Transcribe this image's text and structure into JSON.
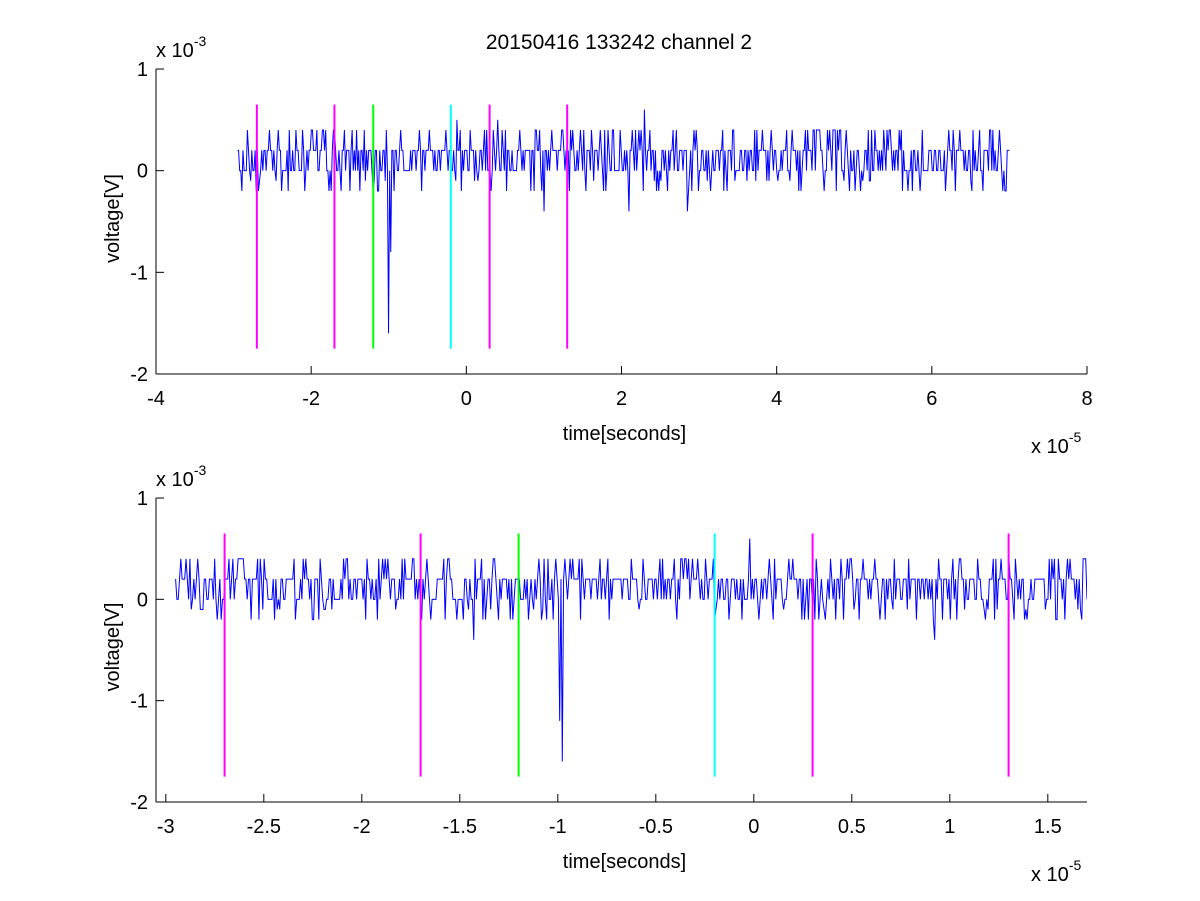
{
  "figure_title": "20150416 133242 channel 2",
  "chart_data": [
    {
      "type": "line",
      "title": "20150416 133242 channel 2",
      "xlabel": "time[seconds]",
      "ylabel": "voltage[V]",
      "x_exponent_label": "x 10",
      "x_exponent": "-5",
      "y_exponent_label": "x 10",
      "y_exponent": "-3",
      "xlim": [
        -4,
        8
      ],
      "ylim": [
        -2,
        1
      ],
      "xticks": [
        -4,
        -2,
        0,
        2,
        4,
        6,
        8
      ],
      "xtick_labels": [
        "-4",
        "-2",
        "0",
        "2",
        "4",
        "6",
        "8"
      ],
      "yticks": [
        -2,
        -1,
        0,
        1
      ],
      "ytick_labels": [
        "-2",
        "-1",
        "0",
        "1"
      ],
      "grid": false,
      "signal": {
        "color": "#0000ff",
        "x_range": [
          -2.95,
          7.0
        ],
        "baseline": 0.05,
        "levels": [
          -0.2,
          -0.1,
          0.0,
          0.2,
          0.4
        ],
        "spikes": [
          {
            "x": -1.0,
            "y": -1.6
          },
          {
            "x": -0.98,
            "y": -0.8
          },
          {
            "x": 2.3,
            "y": 0.6
          },
          {
            "x": 0.4,
            "y": 0.5
          },
          {
            "x": 2.1,
            "y": -0.4
          },
          {
            "x": 2.85,
            "y": -0.4
          },
          {
            "x": 1.0,
            "y": -0.4
          },
          {
            "x": -0.12,
            "y": 0.5
          }
        ]
      },
      "markers": [
        {
          "x": -2.7,
          "y_top": 0.65,
          "y_bottom": -1.75,
          "color": "#ff00ff"
        },
        {
          "x": -1.7,
          "y_top": 0.65,
          "y_bottom": -1.75,
          "color": "#ff00ff"
        },
        {
          "x": -1.2,
          "y_top": 0.65,
          "y_bottom": -1.75,
          "color": "#00ff00"
        },
        {
          "x": -0.2,
          "y_top": 0.65,
          "y_bottom": -1.75,
          "color": "#00ffff"
        },
        {
          "x": 0.3,
          "y_top": 0.65,
          "y_bottom": -1.75,
          "color": "#ff00ff"
        },
        {
          "x": 1.3,
          "y_top": 0.65,
          "y_bottom": -1.75,
          "color": "#ff00ff"
        }
      ]
    },
    {
      "type": "line",
      "title": "",
      "xlabel": "time[seconds]",
      "ylabel": "voltage[V]",
      "x_exponent_label": "x 10",
      "x_exponent": "-5",
      "y_exponent_label": "x 10",
      "y_exponent": "-3",
      "xlim": [
        -3.05,
        1.7
      ],
      "ylim": [
        -2,
        1
      ],
      "xticks": [
        -3,
        -2.5,
        -2,
        -1.5,
        -1,
        -0.5,
        0,
        0.5,
        1,
        1.5
      ],
      "xtick_labels": [
        "-3",
        "-2.5",
        "-2",
        "-1.5",
        "-1",
        "-0.5",
        "0",
        "0.5",
        "1",
        "1.5"
      ],
      "yticks": [
        -2,
        -1,
        0,
        1
      ],
      "ytick_labels": [
        "-2",
        "-1",
        "0",
        "1"
      ],
      "grid": false,
      "signal": {
        "color": "#0000ff",
        "x_range": [
          -2.95,
          1.7
        ],
        "baseline": 0.05,
        "levels": [
          -0.2,
          -0.1,
          0.0,
          0.2,
          0.4
        ],
        "spikes": [
          {
            "x": -0.98,
            "y": -1.6
          },
          {
            "x": -0.99,
            "y": -1.2
          },
          {
            "x": -0.02,
            "y": 0.6
          },
          {
            "x": 0.92,
            "y": -0.4
          },
          {
            "x": -1.43,
            "y": -0.4
          },
          {
            "x": -2.63,
            "y": 0.4
          },
          {
            "x": 1.68,
            "y": 0.4
          },
          {
            "x": 1.55,
            "y": -0.2
          }
        ]
      },
      "markers": [
        {
          "x": -2.7,
          "y_top": 0.65,
          "y_bottom": -1.75,
          "color": "#ff00ff"
        },
        {
          "x": -1.7,
          "y_top": 0.65,
          "y_bottom": -1.75,
          "color": "#ff00ff"
        },
        {
          "x": -1.2,
          "y_top": 0.65,
          "y_bottom": -1.75,
          "color": "#00ff00"
        },
        {
          "x": -0.2,
          "y_top": 0.65,
          "y_bottom": -1.75,
          "color": "#00ffff"
        },
        {
          "x": 0.3,
          "y_top": 0.65,
          "y_bottom": -1.75,
          "color": "#ff00ff"
        },
        {
          "x": 1.3,
          "y_top": 0.65,
          "y_bottom": -1.75,
          "color": "#ff00ff"
        }
      ]
    }
  ]
}
